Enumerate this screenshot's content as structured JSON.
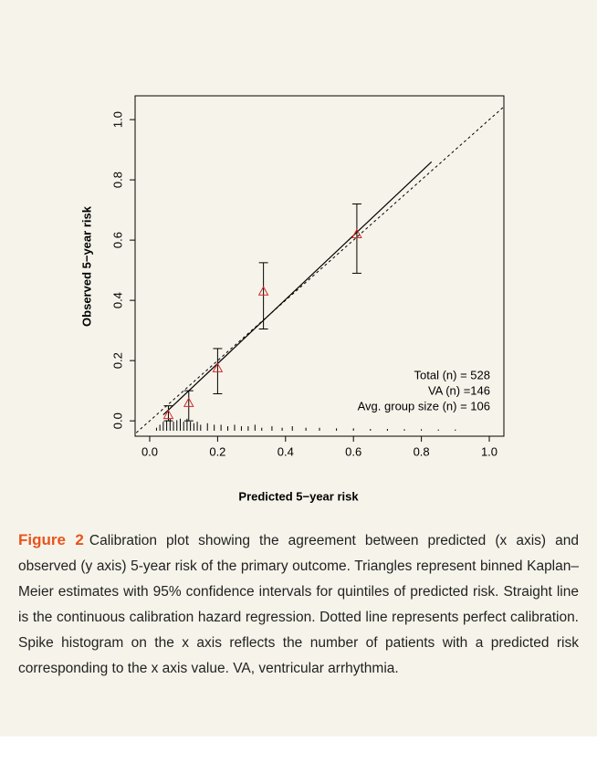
{
  "chart_data": {
    "type": "calibration",
    "xlabel": "Predicted 5−year risk",
    "ylabel": "Observed 5−year risk",
    "xlim": [
      -0.043,
      1.043
    ],
    "ylim": [
      -0.051,
      1.079
    ],
    "xticks": [
      {
        "value": 0,
        "label": "0.0"
      },
      {
        "value": 0.2,
        "label": "0.2"
      },
      {
        "value": 0.4,
        "label": "0.4"
      },
      {
        "value": 0.6,
        "label": "0.6"
      },
      {
        "value": 0.8,
        "label": "0.8"
      },
      {
        "value": 1,
        "label": "1.0"
      }
    ],
    "yticks": [
      {
        "value": 0,
        "label": "0.0"
      },
      {
        "value": 0.2,
        "label": "0.2"
      },
      {
        "value": 0.4,
        "label": "0.4"
      },
      {
        "value": 0.6,
        "label": "0.6"
      },
      {
        "value": 0.8,
        "label": "0.8"
      },
      {
        "value": 1,
        "label": "1.0"
      }
    ],
    "points": {
      "color": "#d62728",
      "x": [
        0.055,
        0.115,
        0.2,
        0.335,
        0.61
      ],
      "values": [
        0.02,
        0.06,
        0.175,
        0.43,
        0.62
      ],
      "lower": [
        0.0,
        0.0,
        0.09,
        0.305,
        0.49
      ],
      "upper": [
        0.05,
        0.1,
        0.24,
        0.525,
        0.72
      ]
    },
    "calibration_line": {
      "x": [
        0.04,
        0.83
      ],
      "values": [
        0.02,
        0.86
      ]
    },
    "reference_line": {
      "x": [
        -0.1,
        1.1
      ],
      "values": [
        -0.1,
        1.1
      ]
    },
    "spikes": {
      "x": [
        0.02,
        0.03,
        0.04,
        0.05,
        0.06,
        0.07,
        0.08,
        0.09,
        0.1,
        0.11,
        0.12,
        0.13,
        0.14,
        0.15,
        0.17,
        0.19,
        0.21,
        0.23,
        0.25,
        0.27,
        0.29,
        0.31,
        0.33,
        0.36,
        0.39,
        0.42,
        0.46,
        0.5,
        0.55,
        0.6,
        0.65,
        0.7,
        0.75,
        0.8,
        0.85,
        0.9
      ],
      "values": [
        0.01,
        0.02,
        0.03,
        0.035,
        0.04,
        0.03,
        0.035,
        0.04,
        0.03,
        0.04,
        0.03,
        0.025,
        0.03,
        0.02,
        0.025,
        0.02,
        0.02,
        0.015,
        0.02,
        0.015,
        0.015,
        0.02,
        0.01,
        0.015,
        0.01,
        0.015,
        0.01,
        0.01,
        0.008,
        0.008,
        0.006,
        0.006,
        0.005,
        0.005,
        0.004,
        0.004
      ]
    },
    "annotations": [
      "Total (n) = 528",
      "VA (n) =146",
      "Avg. group size (n) = 106"
    ]
  },
  "caption": {
    "label": "Figure 2",
    "text": "Calibration plot showing the agreement between predicted (x axis) and observed (y axis) 5-year risk of the primary outcome. Triangles represent binned Kaplan–Meier estimates with 95% confidence intervals for quintiles of predicted risk. Straight line is the continuous calibration hazard regression. Dotted line represents perfect calibration. Spike histogram on the x axis reflects the number of patients with a predicted risk corresponding to the x axis value. VA, ventricular arrhythmia."
  }
}
